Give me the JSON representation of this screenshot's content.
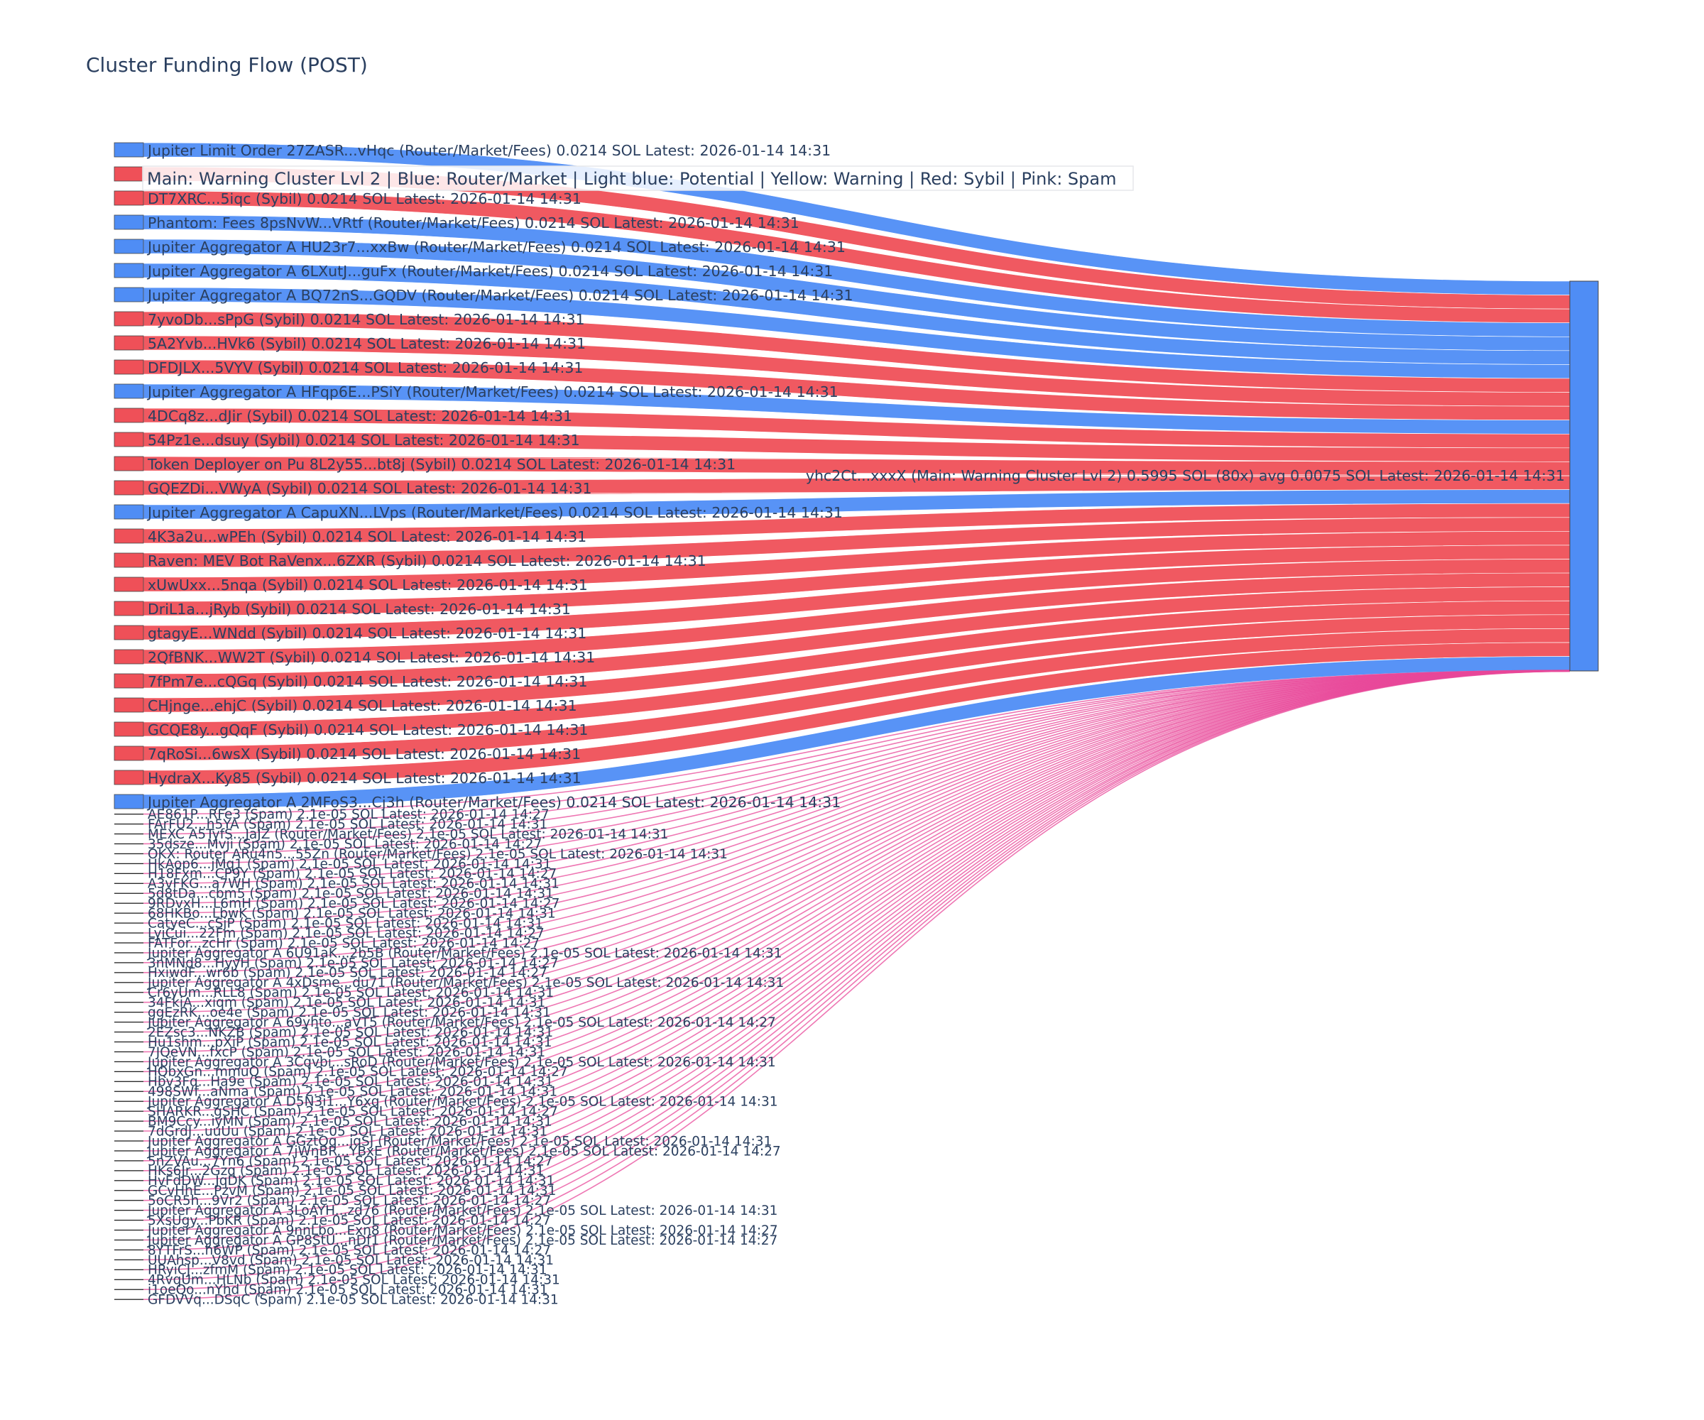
{
  "chart_data": {
    "type": "sankey",
    "title": "Cluster Funding Flow (POST)",
    "legend_text": "Main: Warning Cluster Lvl 2  |  Blue: Router/Market | Light blue: Potential | Yellow: Warning | Red: Sybil | Pink: Spam",
    "colors": {
      "Router/Market": "#4f8df5",
      "Sybil": "#ef5058",
      "Spam": "#e8489a",
      "Main": "#4f8df5",
      "label": "#2a3f5f"
    },
    "target": {
      "label": "yhc2Ct...xxxX (Main: Warning Cluster Lvl 2) 0.5995 SOL (80x) avg 0.0075 SOL Latest: 2026-01-14 14:31",
      "category": "Main",
      "value": 0.5995
    },
    "sources": [
      {
        "label": "Jupiter Limit Order  27ZASR...vHqc (Router/Market/Fees) 0.0214 SOL Latest: 2026-01-14 14:31",
        "category": "Router/Market",
        "value": 0.0214
      },
      {
        "label": "",
        "category": "Sybil",
        "value": 0.0214
      },
      {
        "label": "DT7XRC...5iqc (Sybil) 0.0214 SOL Latest: 2026-01-14 14:31",
        "category": "Sybil",
        "value": 0.0214
      },
      {
        "label": "Phantom: Fees 8psNvW...VRtf (Router/Market/Fees) 0.0214 SOL Latest: 2026-01-14 14:31",
        "category": "Router/Market",
        "value": 0.0214
      },
      {
        "label": "Jupiter Aggregator A HU23r7...xxBw (Router/Market/Fees) 0.0214 SOL Latest: 2026-01-14 14:31",
        "category": "Router/Market",
        "value": 0.0214
      },
      {
        "label": "Jupiter Aggregator A 6LXutJ...guFx (Router/Market/Fees) 0.0214 SOL Latest: 2026-01-14 14:31",
        "category": "Router/Market",
        "value": 0.0214
      },
      {
        "label": "Jupiter Aggregator A BQ72nS...GQDV (Router/Market/Fees) 0.0214 SOL Latest: 2026-01-14 14:31",
        "category": "Router/Market",
        "value": 0.0214
      },
      {
        "label": "7yvoDb...sPpG (Sybil) 0.0214 SOL Latest: 2026-01-14 14:31",
        "category": "Sybil",
        "value": 0.0214
      },
      {
        "label": "5A2Yvb...HVk6 (Sybil) 0.0214 SOL Latest: 2026-01-14 14:31",
        "category": "Sybil",
        "value": 0.0214
      },
      {
        "label": "DFDJLX...5VYV (Sybil) 0.0214 SOL Latest: 2026-01-14 14:31",
        "category": "Sybil",
        "value": 0.0214
      },
      {
        "label": "Jupiter Aggregator A HFqp6E...PSiY (Router/Market/Fees) 0.0214 SOL Latest: 2026-01-14 14:31",
        "category": "Router/Market",
        "value": 0.0214
      },
      {
        "label": "4DCq8z...dJir (Sybil) 0.0214 SOL Latest: 2026-01-14 14:31",
        "category": "Sybil",
        "value": 0.0214
      },
      {
        "label": "54Pz1e...dsuy (Sybil) 0.0214 SOL Latest: 2026-01-14 14:31",
        "category": "Sybil",
        "value": 0.0214
      },
      {
        "label": "Token Deployer on Pu 8L2y55...bt8j (Sybil) 0.0214 SOL Latest: 2026-01-14 14:31",
        "category": "Sybil",
        "value": 0.0214
      },
      {
        "label": "GQEZDi...VWyA (Sybil) 0.0214 SOL Latest: 2026-01-14 14:31",
        "category": "Sybil",
        "value": 0.0214
      },
      {
        "label": "Jupiter Aggregator A CapuXN...LVps (Router/Market/Fees) 0.0214 SOL Latest: 2026-01-14 14:31",
        "category": "Router/Market",
        "value": 0.0214
      },
      {
        "label": "4K3a2u...wPEh (Sybil) 0.0214 SOL Latest: 2026-01-14 14:31",
        "category": "Sybil",
        "value": 0.0214
      },
      {
        "label": "Raven: MEV Bot RaVenx...6ZXR (Sybil) 0.0214 SOL Latest: 2026-01-14 14:31",
        "category": "Sybil",
        "value": 0.0214
      },
      {
        "label": "xUwUxx...5nqa (Sybil) 0.0214 SOL Latest: 2026-01-14 14:31",
        "category": "Sybil",
        "value": 0.0214
      },
      {
        "label": "DriL1a...jRyb (Sybil) 0.0214 SOL Latest: 2026-01-14 14:31",
        "category": "Sybil",
        "value": 0.0214
      },
      {
        "label": "gtagyE...WNdd (Sybil) 0.0214 SOL Latest: 2026-01-14 14:31",
        "category": "Sybil",
        "value": 0.0214
      },
      {
        "label": "2QfBNK...WW2T (Sybil) 0.0214 SOL Latest: 2026-01-14 14:31",
        "category": "Sybil",
        "value": 0.0214
      },
      {
        "label": "7fPm7e...cQGq (Sybil) 0.0214 SOL Latest: 2026-01-14 14:31",
        "category": "Sybil",
        "value": 0.0214
      },
      {
        "label": "CHjnge...ehjC (Sybil) 0.0214 SOL Latest: 2026-01-14 14:31",
        "category": "Sybil",
        "value": 0.0214
      },
      {
        "label": "GCQE8y...gQqF (Sybil) 0.0214 SOL Latest: 2026-01-14 14:31",
        "category": "Sybil",
        "value": 0.0214
      },
      {
        "label": "7qRoSi...6wsX (Sybil) 0.0214 SOL Latest: 2026-01-14 14:31",
        "category": "Sybil",
        "value": 0.0214
      },
      {
        "label": "HydraX...Ky85 (Sybil) 0.0214 SOL Latest: 2026-01-14 14:31",
        "category": "Sybil",
        "value": 0.0214
      },
      {
        "label": "Jupiter Aggregator A 2MFoS3...Cj3h (Router/Market/Fees) 0.0214 SOL Latest: 2026-01-14 14:31",
        "category": "Router/Market",
        "value": 0.0214
      },
      {
        "label": "AE861P...RFe3 (Spam) 2.1e-05 SOL Latest: 2026-01-14 14:27",
        "category": "Spam",
        "value": 2.1e-05
      },
      {
        "label": "FArFU2...h5YA (Spam) 2.1e-05 SOL Latest: 2026-01-14 14:31",
        "category": "Spam",
        "value": 2.1e-05
      },
      {
        "label": "MEXC  A5TyfS...JaJZ (Router/Market/Fees) 2.1e-05 SOL Latest: 2026-01-14 14:31",
        "category": "Spam",
        "value": 2.1e-05
      },
      {
        "label": "35dsze...Mvji (Spam) 2.1e-05 SOL Latest: 2026-01-14 14:27",
        "category": "Spam",
        "value": 2.1e-05
      },
      {
        "label": "OKX: Router ARu4n5...55Zn (Router/Market/Fees) 2.1e-05 SOL Latest: 2026-01-14 14:31",
        "category": "Spam",
        "value": 2.1e-05
      },
      {
        "label": "HkAop6...jMq1 (Spam) 2.1e-05 SOL Latest: 2026-01-14 14:31",
        "category": "Spam",
        "value": 2.1e-05
      },
      {
        "label": "H18Fxm...CP9Y (Spam) 2.1e-05 SOL Latest: 2026-01-14 14:27",
        "category": "Spam",
        "value": 2.1e-05
      },
      {
        "label": "A3vFKG...a7WH (Spam) 2.1e-05 SOL Latest: 2026-01-14 14:31",
        "category": "Spam",
        "value": 2.1e-05
      },
      {
        "label": "5d8tDa...cbm5 (Spam) 2.1e-05 SOL Latest: 2026-01-14 14:31",
        "category": "Spam",
        "value": 2.1e-05
      },
      {
        "label": "9RDvxH...L6mH (Spam) 2.1e-05 SOL Latest: 2026-01-14 14:27",
        "category": "Spam",
        "value": 2.1e-05
      },
      {
        "label": "68HKBo...LbwK (Spam) 2.1e-05 SOL Latest: 2026-01-14 14:31",
        "category": "Spam",
        "value": 2.1e-05
      },
      {
        "label": "CatyeC...cSjP (Spam) 2.1e-05 SOL Latest: 2026-01-14 14:31",
        "category": "Spam",
        "value": 2.1e-05
      },
      {
        "label": "LyiCui...22Fm (Spam) 2.1e-05 SOL Latest: 2026-01-14 14:27",
        "category": "Spam",
        "value": 2.1e-05
      },
      {
        "label": "FATFor...zcHr (Spam) 2.1e-05 SOL Latest: 2026-01-14 14:27",
        "category": "Spam",
        "value": 2.1e-05
      },
      {
        "label": "Jupiter Aggregator A 6U91aK...2b5B (Router/Market/Fees) 2.1e-05 SOL Latest: 2026-01-14 14:31",
        "category": "Spam",
        "value": 2.1e-05
      },
      {
        "label": "3nMNd8...HyyH (Spam) 2.1e-05 SOL Latest: 2026-01-14 14:27",
        "category": "Spam",
        "value": 2.1e-05
      },
      {
        "label": "HxiwdF...wr6b (Spam) 2.1e-05 SOL Latest: 2026-01-14 14:27",
        "category": "Spam",
        "value": 2.1e-05
      },
      {
        "label": "Jupiter Aggregator A 4xDsme...du71 (Router/Market/Fees) 2.1e-05 SOL Latest: 2026-01-14 14:31",
        "category": "Spam",
        "value": 2.1e-05
      },
      {
        "label": "Cr6yUm...RLL8 (Spam) 2.1e-05 SOL Latest: 2026-01-14 14:31",
        "category": "Spam",
        "value": 2.1e-05
      },
      {
        "label": "34FkiA...xiqm (Spam) 2.1e-05 SOL Latest: 2026-01-14 14:31",
        "category": "Spam",
        "value": 2.1e-05
      },
      {
        "label": "ggEzRK...oe4e (Spam) 2.1e-05 SOL Latest: 2026-01-14 14:31",
        "category": "Spam",
        "value": 2.1e-05
      },
      {
        "label": "Jupiter Aggregator A 69yhto...aVT5 (Router/Market/Fees) 2.1e-05 SOL Latest: 2026-01-14 14:27",
        "category": "Spam",
        "value": 2.1e-05
      },
      {
        "label": "2EZsc3...NKZB (Spam) 2.1e-05 SOL Latest: 2026-01-14 14:31",
        "category": "Spam",
        "value": 2.1e-05
      },
      {
        "label": "Hu1shm...pXiP (Spam) 2.1e-05 SOL Latest: 2026-01-14 14:31",
        "category": "Spam",
        "value": 2.1e-05
      },
      {
        "label": "7JQeVN...fxcP (Spam) 2.1e-05 SOL Latest: 2026-01-14 14:31",
        "category": "Spam",
        "value": 2.1e-05
      },
      {
        "label": "Jupiter Aggregator A 3Cqvbi...sRoD (Router/Market/Fees) 2.1e-05 SOL Latest: 2026-01-14 14:31",
        "category": "Spam",
        "value": 2.1e-05
      },
      {
        "label": "HQbxGn...mmuQ (Spam) 2.1e-05 SOL Latest: 2026-01-14 14:27",
        "category": "Spam",
        "value": 2.1e-05
      },
      {
        "label": "Hbv3Fq...Ha9e (Spam) 2.1e-05 SOL Latest: 2026-01-14 14:31",
        "category": "Spam",
        "value": 2.1e-05
      },
      {
        "label": "498SWf...aNma (Spam) 2.1e-05 SOL Latest: 2026-01-14 14:31",
        "category": "Spam",
        "value": 2.1e-05
      },
      {
        "label": "Jupiter Aggregator A D5N3i1...Y6xq (Router/Market/Fees) 2.1e-05 SOL Latest: 2026-01-14 14:31",
        "category": "Spam",
        "value": 2.1e-05
      },
      {
        "label": "SHARKR...gSHC (Spam) 2.1e-05 SOL Latest: 2026-01-14 14:27",
        "category": "Spam",
        "value": 2.1e-05
      },
      {
        "label": "BM9Ccy...iyMN (Spam) 2.1e-05 SOL Latest: 2026-01-14 14:31",
        "category": "Spam",
        "value": 2.1e-05
      },
      {
        "label": "7dGrdJ...uuUu (Spam) 2.1e-05 SOL Latest: 2026-01-14 14:31",
        "category": "Spam",
        "value": 2.1e-05
      },
      {
        "label": "Jupiter Aggregator A GGztQq...jqSJ (Router/Market/Fees) 2.1e-05 SOL Latest: 2026-01-14 14:31",
        "category": "Spam",
        "value": 2.1e-05
      },
      {
        "label": "Jupiter Aggregator A 7jWnBR...YBxE (Router/Market/Fees) 2.1e-05 SOL Latest: 2026-01-14 14:27",
        "category": "Spam",
        "value": 2.1e-05
      },
      {
        "label": "5nZVAu...7Yn6 (Spam) 2.1e-05 SOL Latest: 2026-01-14 14:27",
        "category": "Spam",
        "value": 2.1e-05
      },
      {
        "label": "HKs6Jr...2Gzq (Spam) 2.1e-05 SOL Latest: 2026-01-14 14:31",
        "category": "Spam",
        "value": 2.1e-05
      },
      {
        "label": "HvFdDW...JqDK (Spam) 2.1e-05 SOL Latest: 2026-01-14 14:31",
        "category": "Spam",
        "value": 2.1e-05
      },
      {
        "label": "GCvHhE...PzvM (Spam) 2.1e-05 SOL Latest: 2026-01-14 14:31",
        "category": "Spam",
        "value": 2.1e-05
      },
      {
        "label": "5oCR5h...9Vr2 (Spam) 2.1e-05 SOL Latest: 2026-01-14 14:27",
        "category": "Spam",
        "value": 2.1e-05
      },
      {
        "label": "Jupiter Aggregator A 3LoAYH...zd76 (Router/Market/Fees) 2.1e-05 SOL Latest: 2026-01-14 14:31",
        "category": "Spam",
        "value": 2.1e-05
      },
      {
        "label": "5XsUgy...PbKR (Spam) 2.1e-05 SOL Latest: 2026-01-14 14:27",
        "category": "Spam",
        "value": 2.1e-05
      },
      {
        "label": "Jupiter Aggregator A 9nnLbo...Exn8 (Router/Market/Fees) 2.1e-05 SOL Latest: 2026-01-14 14:27",
        "category": "Spam",
        "value": 2.1e-05
      },
      {
        "label": "Jupiter Aggregator A GP8StU...nDf1 (Router/Market/Fees) 2.1e-05 SOL Latest: 2026-01-14 14:27",
        "category": "Spam",
        "value": 2.1e-05
      },
      {
        "label": "8YTFrS...h6WP (Spam) 2.1e-05 SOL Latest: 2026-01-14 14:27",
        "category": "Spam",
        "value": 2.1e-05
      },
      {
        "label": "UUAhsp...V8vd (Spam) 2.1e-05 SOL Latest: 2026-01-14 14:31",
        "category": "Spam",
        "value": 2.1e-05
      },
      {
        "label": "HRyiCJ...zfmM (Spam) 2.1e-05 SOL Latest: 2026-01-14 14:31",
        "category": "Spam",
        "value": 2.1e-05
      },
      {
        "label": "4RvqUm...HLNb (Spam) 2.1e-05 SOL Latest: 2026-01-14 14:31",
        "category": "Spam",
        "value": 2.1e-05
      },
      {
        "label": "i1oeQo...nYhd (Spam) 2.1e-05 SOL Latest: 2026-01-14 14:31",
        "category": "Spam",
        "value": 2.1e-05
      },
      {
        "label": "GFDVVq...DSqC (Spam) 2.1e-05 SOL Latest: 2026-01-14 14:31",
        "category": "Spam",
        "value": 2.1e-05
      }
    ]
  }
}
